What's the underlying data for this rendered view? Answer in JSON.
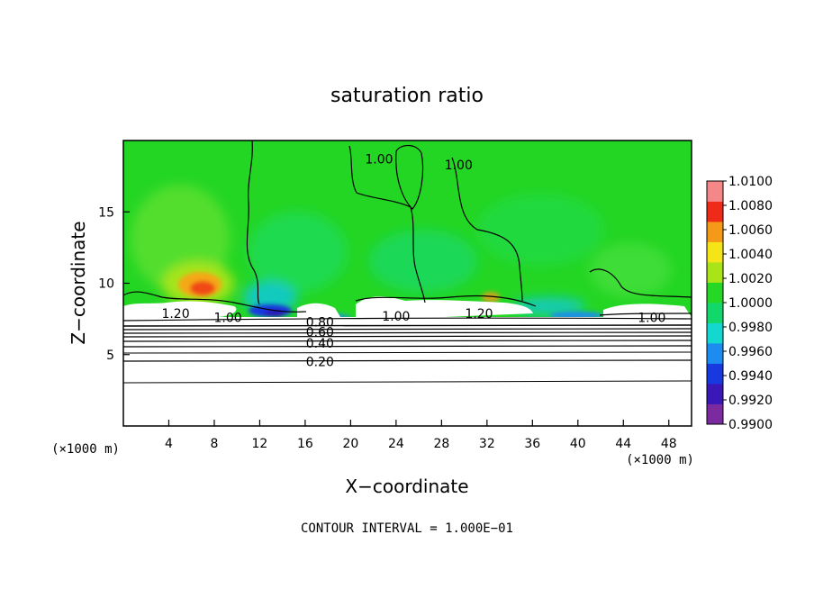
{
  "chart_data": {
    "type": "heatmap",
    "title": "saturation ratio",
    "xlabel": "X−coordinate",
    "ylabel": "Z−coordinate",
    "x_unit_label": "(×1000 m)",
    "y_unit_label": "(×1000 m)",
    "xlim": [
      0,
      50
    ],
    "ylim": [
      0,
      20
    ],
    "x_ticks": [
      4,
      8,
      12,
      16,
      20,
      24,
      28,
      32,
      36,
      40,
      44,
      48
    ],
    "y_ticks": [
      5,
      10,
      15
    ],
    "colorbar": {
      "labels": [
        "1.0100",
        "1.0080",
        "1.0060",
        "1.0040",
        "1.0020",
        "1.0000",
        "0.9980",
        "0.9960",
        "0.9940",
        "0.9920",
        "0.9900"
      ],
      "colors": [
        "#7b2aa0",
        "#3a18b8",
        "#1838e0",
        "#1c8cf0",
        "#12d8d0",
        "#12d86c",
        "#26d826",
        "#a8e418",
        "#f4e418",
        "#f49a18",
        "#f02a18",
        "#f48888"
      ]
    },
    "contour_labels": [
      {
        "text": "1.00",
        "x": 22.5,
        "y": 18.7
      },
      {
        "text": "1.00",
        "x": 29.5,
        "y": 18.3
      },
      {
        "text": "1.20",
        "x": 4.6,
        "y": 7.9
      },
      {
        "text": "1.00",
        "x": 9.2,
        "y": 7.6
      },
      {
        "text": "0.80",
        "x": 17.3,
        "y": 7.3
      },
      {
        "text": "1.00",
        "x": 24.0,
        "y": 7.7
      },
      {
        "text": "1.20",
        "x": 31.3,
        "y": 7.9
      },
      {
        "text": "1.00",
        "x": 46.5,
        "y": 7.6
      },
      {
        "text": "0.60",
        "x": 17.3,
        "y": 6.6
      },
      {
        "text": "0.40",
        "x": 17.3,
        "y": 5.8
      },
      {
        "text": "0.20",
        "x": 17.3,
        "y": 4.5
      }
    ],
    "footer": "CONTOUR INTERVAL = 1.000E−01"
  }
}
